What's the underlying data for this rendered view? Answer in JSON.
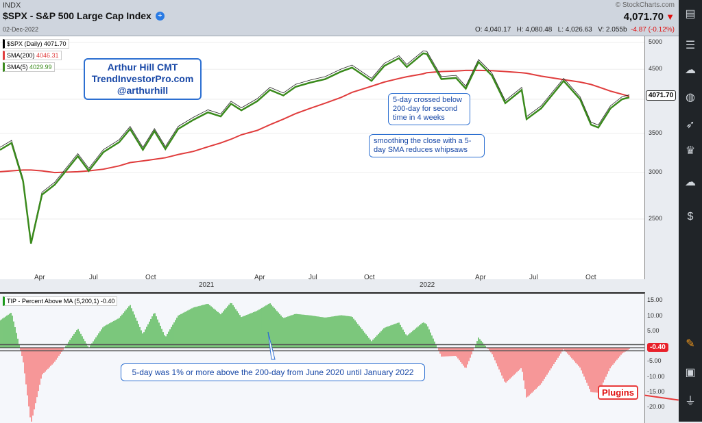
{
  "header": {
    "exchange": "INDX",
    "title": "$SPX - S&P 500 Large Cap Index",
    "date": "02-Dec-2022",
    "copyright": "© StockCharts.com",
    "last": "4,071.70",
    "open": "O: 4,040.17",
    "high": "H: 4,080.48",
    "low": "L: 4,026.63",
    "volume": "V: 2.055b",
    "change": "-4.87 (-0.12%)",
    "down_color": "#e01010"
  },
  "legend": {
    "price": "$SPX (Daily) 4071.70",
    "sma200_label": "SMA(200)",
    "sma200_value": "4046.31",
    "sma5_label": "SMA(5)",
    "sma5_value": "4029.99",
    "indicator": "TIP - Percent Above MA (5,200,1) -0.40"
  },
  "annotations": {
    "author": [
      "Arthur Hill CMT",
      "TrendInvestorPro.com",
      "@arthurhill"
    ],
    "cross": "5-day crossed below 200-day for second time in 4 weeks",
    "smoothing": "smoothing the close with a 5-day SMA reduces whipsaws",
    "above": "5-day was 1% or more above the 200-day from June 2020 until January 2022",
    "plugins": "Plugins"
  },
  "price_tag": "4071.70",
  "indicator_tag": "-0.40",
  "sidebar_icons": [
    "chart-list-icon",
    "sliders-icon",
    "cloud-sync-icon",
    "globe-icon",
    "rocket-icon",
    "trophy-icon",
    "cloud-icon",
    "dollar-doc-icon",
    "pen-icon",
    "tv-icon",
    "plug-icon"
  ],
  "chart_data": [
    {
      "type": "line",
      "scale": "log",
      "ylim": [
        2200,
        5100
      ],
      "yticks": [
        "5000",
        "4500",
        "3500",
        "3000",
        "2500"
      ],
      "xticks": [
        "Apr",
        "Jul",
        "Oct",
        "2021",
        "Apr",
        "Jul",
        "Oct",
        "2022",
        "Apr",
        "Jul",
        "Oct"
      ],
      "colors": {
        "sma5": "#3a8a1c",
        "sma200": "#e03c3c"
      },
      "x": [
        "2020-02-01",
        "2020-02-20",
        "2020-03-10",
        "2020-03-23",
        "2020-04-10",
        "2020-05-01",
        "2020-06-08",
        "2020-06-26",
        "2020-07-20",
        "2020-08-15",
        "2020-09-02",
        "2020-09-23",
        "2020-10-12",
        "2020-10-30",
        "2020-11-20",
        "2020-12-15",
        "2021-01-08",
        "2021-01-29",
        "2021-02-15",
        "2021-03-04",
        "2021-03-30",
        "2021-04-20",
        "2021-05-12",
        "2021-06-01",
        "2021-06-25",
        "2021-07-20",
        "2021-08-15",
        "2021-09-02",
        "2021-10-04",
        "2021-10-25",
        "2021-11-18",
        "2021-12-01",
        "2021-12-28",
        "2022-01-03",
        "2022-01-27",
        "2022-02-20",
        "2022-03-08",
        "2022-03-29",
        "2022-04-20",
        "2022-05-12",
        "2022-06-08",
        "2022-06-16",
        "2022-07-10",
        "2022-08-16",
        "2022-09-12",
        "2022-09-30",
        "2022-10-12",
        "2022-11-01",
        "2022-11-20",
        "2022-12-02"
      ],
      "sma5": [
        3280,
        3370,
        2900,
        2270,
        2750,
        2860,
        3200,
        3020,
        3250,
        3380,
        3560,
        3280,
        3530,
        3290,
        3560,
        3690,
        3800,
        3740,
        3930,
        3830,
        3970,
        4150,
        4060,
        4200,
        4270,
        4330,
        4460,
        4530,
        4300,
        4560,
        4700,
        4540,
        4790,
        4780,
        4330,
        4350,
        4170,
        4630,
        4390,
        3940,
        4150,
        3700,
        3860,
        4300,
        4000,
        3620,
        3580,
        3860,
        4000,
        4030
      ],
      "sma200": [
        3010,
        3020,
        3030,
        3030,
        3020,
        3000,
        3010,
        3020,
        3040,
        3080,
        3120,
        3140,
        3160,
        3180,
        3220,
        3260,
        3320,
        3370,
        3420,
        3480,
        3540,
        3620,
        3700,
        3780,
        3860,
        3940,
        4030,
        4110,
        4210,
        4280,
        4340,
        4370,
        4420,
        4440,
        4460,
        4470,
        4480,
        4480,
        4475,
        4460,
        4440,
        4430,
        4380,
        4320,
        4280,
        4240,
        4200,
        4130,
        4080,
        4046
      ]
    },
    {
      "type": "area",
      "ylim": [
        -22,
        17
      ],
      "yticks": [
        "15.00",
        "10.00",
        "5.00",
        "-5.00",
        "-10.00",
        "-15.00",
        "-20.00"
      ],
      "series": "percent above MA = (SMA5/SMA200-1)*100"
    }
  ]
}
